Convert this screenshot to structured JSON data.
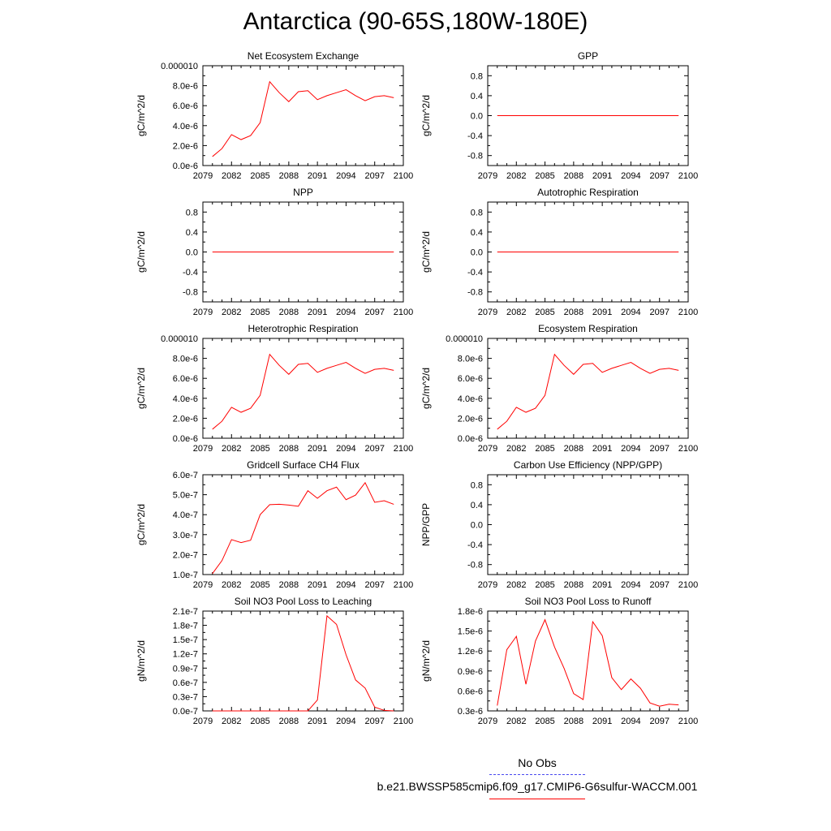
{
  "page_title": "Antarctica (90-65S,180W-180E)",
  "legend": {
    "obs_label": "No Obs",
    "model_label": "b.e21.BWSSP585cmip6.f09_g17.CMIP6-G6sulfur-WACCM.001",
    "obs_color": "#4a4af0",
    "model_color": "#ff0000"
  },
  "chart_data": [
    {
      "type": "line",
      "title": "Net Ecosystem Exchange",
      "ylabel": "gC/m^2/d",
      "xlim": [
        2079,
        2100
      ],
      "ylim": [
        0,
        1e-05
      ],
      "xticks": [
        2079,
        2082,
        2085,
        2088,
        2091,
        2094,
        2097,
        2100
      ],
      "yticks": [
        0,
        2e-06,
        4e-06,
        6e-06,
        8e-06,
        1e-05
      ],
      "yticklabels": [
        "0.0e-6",
        "2.0e-6",
        "4.0e-6",
        "6.0e-6",
        "8.0e-6",
        "0.000010"
      ],
      "x": [
        2080,
        2081,
        2082,
        2083,
        2084,
        2085,
        2086,
        2087,
        2088,
        2089,
        2090,
        2091,
        2092,
        2093,
        2094,
        2095,
        2096,
        2097,
        2098,
        2099
      ],
      "series": [
        {
          "values": [
            9e-07,
            1.7e-06,
            3.1e-06,
            2.6e-06,
            3e-06,
            4.3e-06,
            8.4e-06,
            7.3e-06,
            6.4e-06,
            7.4e-06,
            7.5e-06,
            6.6e-06,
            7e-06,
            7.3e-06,
            7.6e-06,
            7e-06,
            6.5e-06,
            6.9e-06,
            7e-06,
            6.8e-06
          ]
        }
      ]
    },
    {
      "type": "line",
      "title": "GPP",
      "ylabel": "gC/m^2/d",
      "xlim": [
        2079,
        2100
      ],
      "ylim": [
        -1,
        1
      ],
      "xticks": [
        2079,
        2082,
        2085,
        2088,
        2091,
        2094,
        2097,
        2100
      ],
      "yticks": [
        -0.8,
        -0.4,
        0,
        0.4,
        0.8
      ],
      "yticklabels": [
        "-0.8",
        "-0.4",
        "0.0",
        "0.4",
        "0.8"
      ],
      "x": [
        2080,
        2099
      ],
      "series": [
        {
          "values": [
            0,
            0
          ]
        }
      ]
    },
    {
      "type": "line",
      "title": "NPP",
      "ylabel": "gC/m^2/d",
      "xlim": [
        2079,
        2100
      ],
      "ylim": [
        -1,
        1
      ],
      "xticks": [
        2079,
        2082,
        2085,
        2088,
        2091,
        2094,
        2097,
        2100
      ],
      "yticks": [
        -0.8,
        -0.4,
        0,
        0.4,
        0.8
      ],
      "yticklabels": [
        "-0.8",
        "-0.4",
        "0.0",
        "0.4",
        "0.8"
      ],
      "x": [
        2080,
        2099
      ],
      "series": [
        {
          "values": [
            0,
            0
          ]
        }
      ]
    },
    {
      "type": "line",
      "title": "Autotrophic Respiration",
      "ylabel": "gC/m^2/d",
      "xlim": [
        2079,
        2100
      ],
      "ylim": [
        -1,
        1
      ],
      "xticks": [
        2079,
        2082,
        2085,
        2088,
        2091,
        2094,
        2097,
        2100
      ],
      "yticks": [
        -0.8,
        -0.4,
        0,
        0.4,
        0.8
      ],
      "yticklabels": [
        "-0.8",
        "-0.4",
        "0.0",
        "0.4",
        "0.8"
      ],
      "x": [
        2080,
        2099
      ],
      "series": [
        {
          "values": [
            0,
            0
          ]
        }
      ]
    },
    {
      "type": "line",
      "title": "Heterotrophic Respiration",
      "ylabel": "gC/m^2/d",
      "xlim": [
        2079,
        2100
      ],
      "ylim": [
        0,
        1e-05
      ],
      "xticks": [
        2079,
        2082,
        2085,
        2088,
        2091,
        2094,
        2097,
        2100
      ],
      "yticks": [
        0,
        2e-06,
        4e-06,
        6e-06,
        8e-06,
        1e-05
      ],
      "yticklabels": [
        "0.0e-6",
        "2.0e-6",
        "4.0e-6",
        "6.0e-6",
        "8.0e-6",
        "0.000010"
      ],
      "x": [
        2080,
        2081,
        2082,
        2083,
        2084,
        2085,
        2086,
        2087,
        2088,
        2089,
        2090,
        2091,
        2092,
        2093,
        2094,
        2095,
        2096,
        2097,
        2098,
        2099
      ],
      "series": [
        {
          "values": [
            9e-07,
            1.7e-06,
            3.1e-06,
            2.6e-06,
            3e-06,
            4.3e-06,
            8.4e-06,
            7.3e-06,
            6.4e-06,
            7.4e-06,
            7.5e-06,
            6.6e-06,
            7e-06,
            7.3e-06,
            7.6e-06,
            7e-06,
            6.5e-06,
            6.9e-06,
            7e-06,
            6.8e-06
          ]
        }
      ]
    },
    {
      "type": "line",
      "title": "Ecosystem Respiration",
      "ylabel": "gC/m^2/d",
      "xlim": [
        2079,
        2100
      ],
      "ylim": [
        0,
        1e-05
      ],
      "xticks": [
        2079,
        2082,
        2085,
        2088,
        2091,
        2094,
        2097,
        2100
      ],
      "yticks": [
        0,
        2e-06,
        4e-06,
        6e-06,
        8e-06,
        1e-05
      ],
      "yticklabels": [
        "0.0e-6",
        "2.0e-6",
        "4.0e-6",
        "6.0e-6",
        "8.0e-6",
        "0.000010"
      ],
      "x": [
        2080,
        2081,
        2082,
        2083,
        2084,
        2085,
        2086,
        2087,
        2088,
        2089,
        2090,
        2091,
        2092,
        2093,
        2094,
        2095,
        2096,
        2097,
        2098,
        2099
      ],
      "series": [
        {
          "values": [
            9e-07,
            1.7e-06,
            3.1e-06,
            2.6e-06,
            3e-06,
            4.3e-06,
            8.4e-06,
            7.3e-06,
            6.4e-06,
            7.4e-06,
            7.5e-06,
            6.6e-06,
            7e-06,
            7.3e-06,
            7.6e-06,
            7e-06,
            6.5e-06,
            6.9e-06,
            7e-06,
            6.8e-06
          ]
        }
      ]
    },
    {
      "type": "line",
      "title": "Gridcell Surface CH4 Flux",
      "ylabel": "gC/m^2/d",
      "xlim": [
        2079,
        2100
      ],
      "ylim": [
        1e-07,
        6e-07
      ],
      "xticks": [
        2079,
        2082,
        2085,
        2088,
        2091,
        2094,
        2097,
        2100
      ],
      "yticks": [
        1e-07,
        2e-07,
        3e-07,
        4e-07,
        5e-07,
        6e-07
      ],
      "yticklabels": [
        "1.0e-7",
        "2.0e-7",
        "3.0e-7",
        "4.0e-7",
        "5.0e-7",
        "6.0e-7"
      ],
      "x": [
        2080,
        2081,
        2082,
        2083,
        2084,
        2085,
        2086,
        2087,
        2088,
        2089,
        2090,
        2091,
        2092,
        2093,
        2094,
        2095,
        2096,
        2097,
        2098,
        2099
      ],
      "series": [
        {
          "values": [
            1.05e-07,
            1.7e-07,
            2.75e-07,
            2.6e-07,
            2.72e-07,
            4e-07,
            4.5e-07,
            4.52e-07,
            4.48e-07,
            4.42e-07,
            5.2e-07,
            4.82e-07,
            5.2e-07,
            5.38e-07,
            4.75e-07,
            4.98e-07,
            5.6e-07,
            4.62e-07,
            4.7e-07,
            4.52e-07
          ]
        }
      ]
    },
    {
      "type": "line",
      "title": "Carbon Use Efficiency (NPP/GPP)",
      "ylabel": "NPP/GPP",
      "xlim": [
        2079,
        2100
      ],
      "ylim": [
        -1,
        1
      ],
      "xticks": [
        2079,
        2082,
        2085,
        2088,
        2091,
        2094,
        2097,
        2100
      ],
      "yticks": [
        -0.8,
        -0.4,
        0,
        0.4,
        0.8
      ],
      "yticklabels": [
        "-0.8",
        "-0.4",
        "0.0",
        "0.4",
        "0.8"
      ],
      "x": [],
      "series": [
        {
          "values": []
        }
      ]
    },
    {
      "type": "line",
      "title": "Soil NO3 Pool Loss to Leaching",
      "ylabel": "gN/m^2/d",
      "xlim": [
        2079,
        2100
      ],
      "ylim": [
        0,
        2.1e-07
      ],
      "xticks": [
        2079,
        2082,
        2085,
        2088,
        2091,
        2094,
        2097,
        2100
      ],
      "yticks": [
        0,
        3e-08,
        6e-08,
        9e-08,
        1.2e-07,
        1.5e-07,
        1.8e-07,
        2.1e-07
      ],
      "yticklabels": [
        "0.0e-7",
        "0.3e-7",
        "0.6e-7",
        "0.9e-7",
        "1.2e-7",
        "1.5e-7",
        "1.8e-7",
        "2.1e-7"
      ],
      "x": [
        2080,
        2081,
        2082,
        2083,
        2084,
        2085,
        2086,
        2087,
        2088,
        2089,
        2090,
        2091,
        2092,
        2093,
        2094,
        2095,
        2096,
        2097,
        2098,
        2099
      ],
      "series": [
        {
          "values": [
            0,
            0,
            0,
            0,
            0,
            0,
            0,
            0,
            0,
            0,
            0,
            2.3e-08,
            2e-07,
            1.82e-07,
            1.18e-07,
            6.5e-08,
            4.8e-08,
            8e-09,
            1e-09,
            0
          ]
        }
      ]
    },
    {
      "type": "line",
      "title": "Soil NO3 Pool Loss to Runoff",
      "ylabel": "gN/m^2/d",
      "xlim": [
        2079,
        2100
      ],
      "ylim": [
        3e-07,
        1.8e-06
      ],
      "xticks": [
        2079,
        2082,
        2085,
        2088,
        2091,
        2094,
        2097,
        2100
      ],
      "yticks": [
        3e-07,
        6e-07,
        9e-07,
        1.2e-06,
        1.5e-06,
        1.8e-06
      ],
      "yticklabels": [
        "0.3e-6",
        "0.6e-6",
        "0.9e-6",
        "1.2e-6",
        "1.5e-6",
        "1.8e-6"
      ],
      "x": [
        2080,
        2081,
        2082,
        2083,
        2084,
        2085,
        2086,
        2087,
        2088,
        2089,
        2090,
        2091,
        2092,
        2093,
        2094,
        2095,
        2096,
        2097,
        2098,
        2099
      ],
      "series": [
        {
          "values": [
            3.8e-07,
            1.22e-06,
            1.42e-06,
            7e-07,
            1.35e-06,
            1.67e-06,
            1.26e-06,
            9.4e-07,
            5.6e-07,
            4.7e-07,
            1.64e-06,
            1.43e-06,
            8e-07,
            6.2e-07,
            7.8e-07,
            6.4e-07,
            4.2e-07,
            3.7e-07,
            4e-07,
            3.9e-07
          ]
        }
      ]
    }
  ]
}
